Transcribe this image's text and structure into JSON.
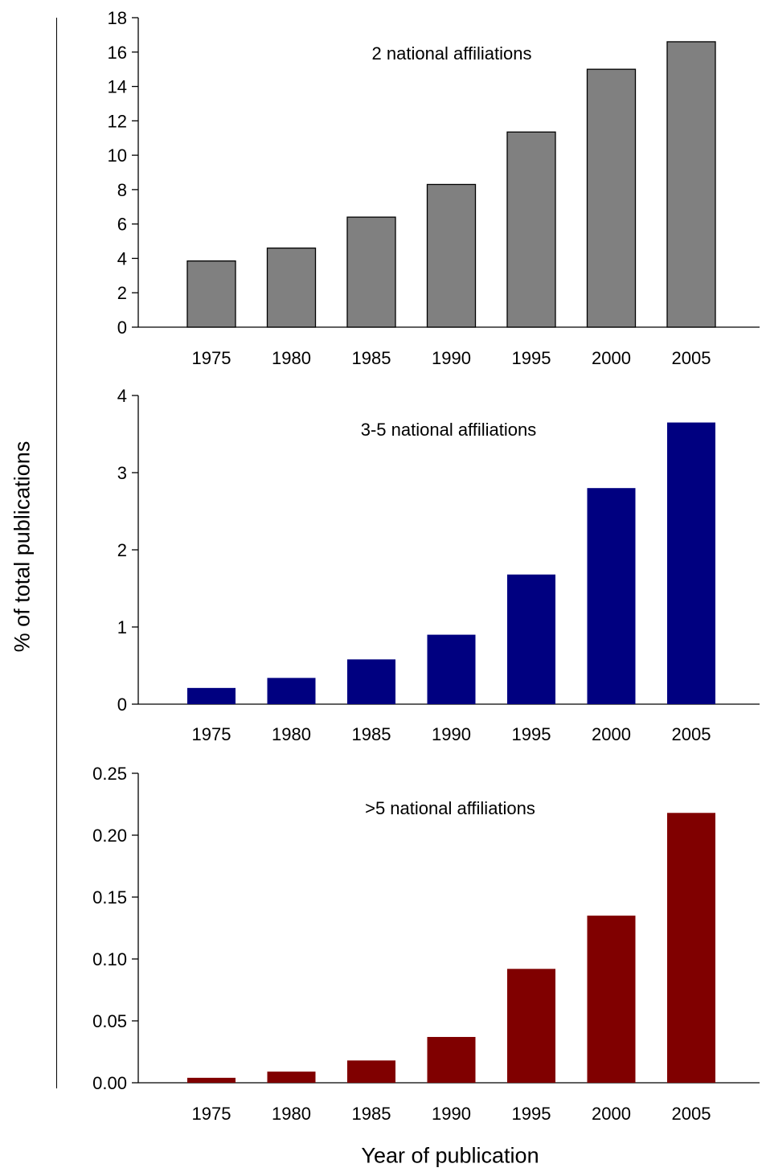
{
  "figure": {
    "ylabel": "% of total publications",
    "xlabel": "Year of publication"
  },
  "chart_data": [
    {
      "type": "bar",
      "title": "2 national affiliations",
      "categories": [
        "1975",
        "1980",
        "1985",
        "1990",
        "1995",
        "2000",
        "2005"
      ],
      "values": [
        3.85,
        4.6,
        6.4,
        8.3,
        11.35,
        15.0,
        16.6
      ],
      "ylim": [
        0,
        18
      ],
      "yticks": [
        0,
        2,
        4,
        6,
        8,
        10,
        12,
        14,
        16,
        18
      ],
      "ytick_labels": [
        "0",
        "2",
        "4",
        "6",
        "8",
        "10",
        "12",
        "14",
        "16",
        "18"
      ],
      "color": "#808080",
      "grid": false
    },
    {
      "type": "bar",
      "title": "3-5 national affiliations",
      "categories": [
        "1975",
        "1980",
        "1985",
        "1990",
        "1995",
        "2000",
        "2005"
      ],
      "values": [
        0.21,
        0.34,
        0.58,
        0.9,
        1.68,
        2.8,
        3.65
      ],
      "ylim": [
        0,
        4
      ],
      "yticks": [
        0,
        1,
        2,
        3,
        4
      ],
      "ytick_labels": [
        "0",
        "1",
        "2",
        "3",
        "4"
      ],
      "color": "#000080",
      "grid": false
    },
    {
      "type": "bar",
      "title": ">5 national affiliations",
      "categories": [
        "1975",
        "1980",
        "1985",
        "1990",
        "1995",
        "2000",
        "2005"
      ],
      "values": [
        0.004,
        0.009,
        0.018,
        0.037,
        0.092,
        0.135,
        0.218
      ],
      "ylim": [
        0,
        0.25
      ],
      "yticks": [
        0,
        0.05,
        0.1,
        0.15,
        0.2,
        0.25
      ],
      "ytick_labels": [
        "0.00",
        "0.05",
        "0.10",
        "0.15",
        "0.20",
        "0.25"
      ],
      "color": "#800000",
      "grid": false
    }
  ]
}
